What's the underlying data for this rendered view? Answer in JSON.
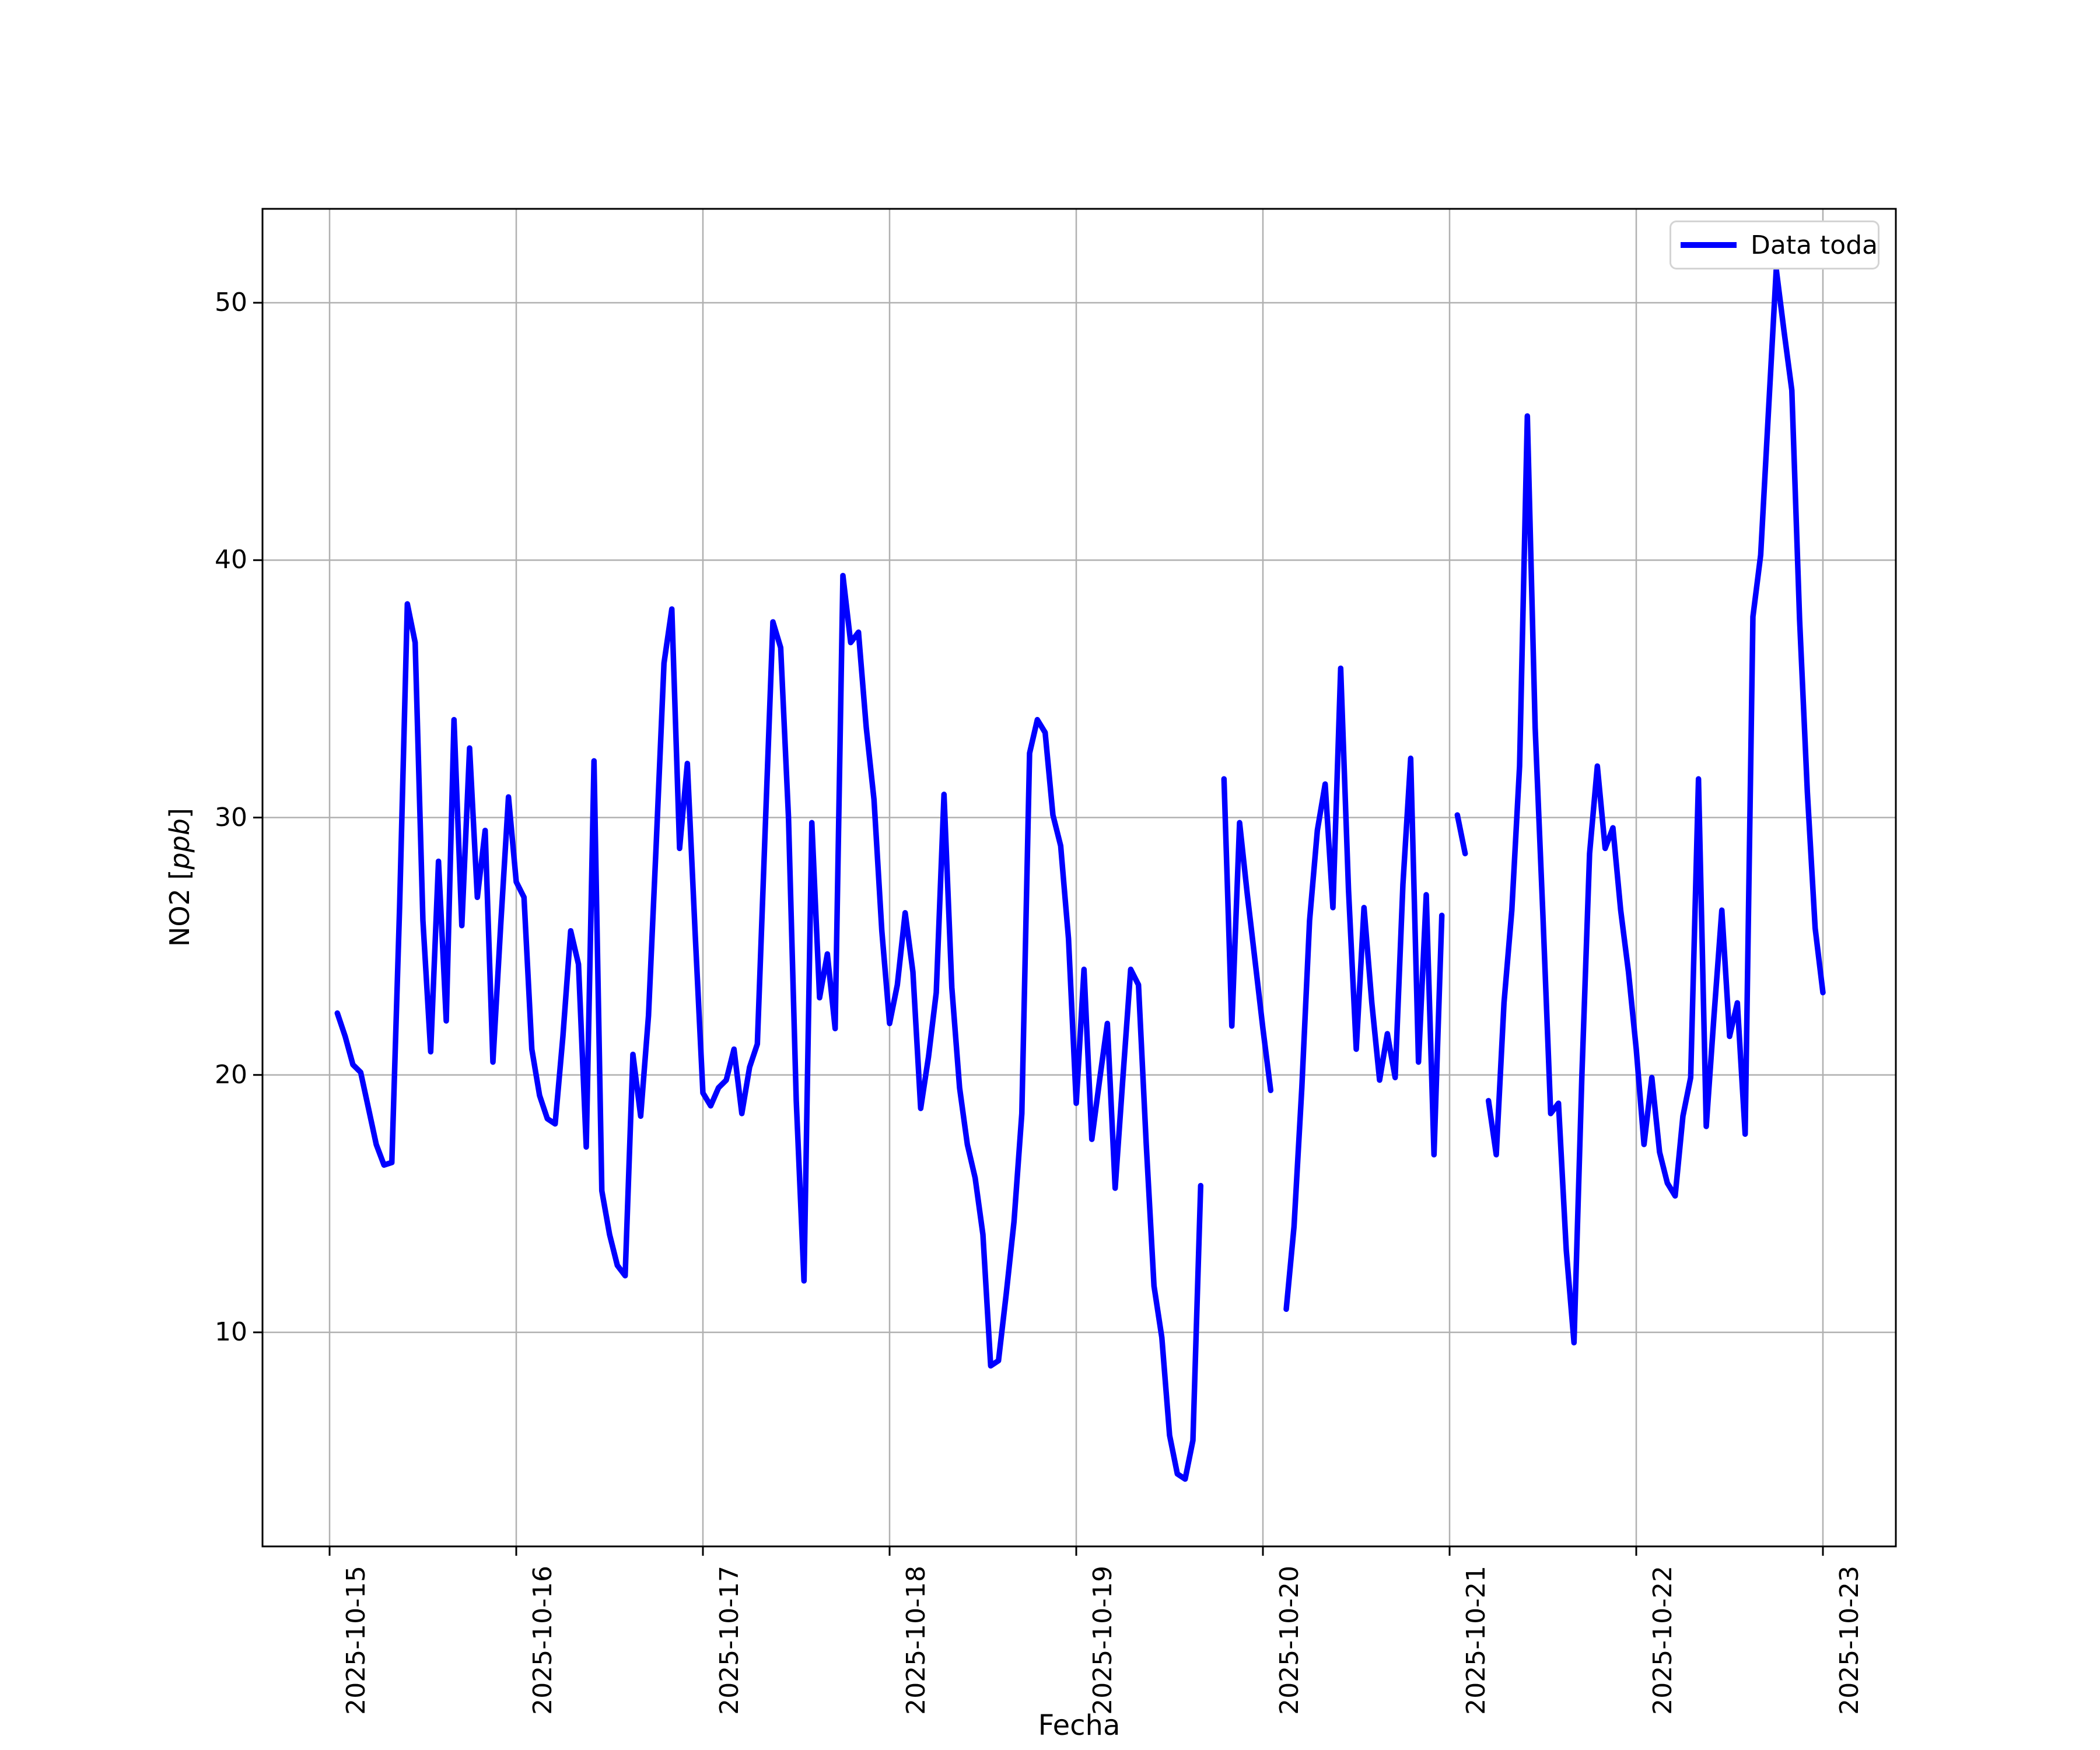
{
  "chart_data": {
    "type": "line",
    "title": "",
    "xlabel": "Fecha",
    "ylabel": "NO2 [ppb]",
    "ylabel_parts": {
      "prefix": "NO2 [",
      "italic": "ppb",
      "suffix": "]"
    },
    "grid": true,
    "grid_color": "#b0b0b0",
    "line_color": "#0000ff",
    "spine_color": "#000000",
    "legend": {
      "position": "upper right",
      "entries": [
        {
          "label": "Data toda",
          "color": "#0000ff"
        }
      ]
    },
    "x_axis": {
      "start_date": "2025-10-15",
      "tick_labels": [
        "2025-10-15",
        "2025-10-16",
        "2025-10-17",
        "2025-10-18",
        "2025-10-19",
        "2025-10-20",
        "2025-10-21",
        "2025-10-22",
        "2025-10-23"
      ],
      "tick_hours": [
        0,
        24,
        48,
        72,
        96,
        120,
        144,
        168,
        192
      ],
      "xlim_hours": [
        -8.6,
        201.4
      ],
      "tick_label_rotation_deg": 90
    },
    "y_axis": {
      "ticks": [
        10,
        20,
        30,
        40,
        50
      ],
      "ylim": [
        1.68,
        53.66
      ],
      "unit": "ppb"
    },
    "series": [
      {
        "name": "Data toda",
        "color": "#0000ff",
        "x_unit": "hours_since_2025-10-15T00:00",
        "segments": [
          [
            [
              1,
              22.4
            ],
            [
              2,
              21.5
            ],
            [
              3,
              20.4
            ],
            [
              4,
              20.1
            ],
            [
              5,
              18.7
            ],
            [
              6,
              17.3
            ],
            [
              7,
              16.5
            ],
            [
              8,
              16.6
            ],
            [
              9,
              26.5
            ],
            [
              10,
              38.3
            ],
            [
              11,
              36.8
            ],
            [
              12,
              26.0
            ],
            [
              13,
              20.9
            ],
            [
              14,
              28.3
            ],
            [
              15,
              22.1
            ],
            [
              16,
              33.8
            ],
            [
              17,
              25.8
            ],
            [
              18,
              32.7
            ],
            [
              19,
              26.9
            ],
            [
              20,
              29.5
            ],
            [
              21,
              20.5
            ],
            [
              22,
              25.8
            ],
            [
              23,
              30.8
            ],
            [
              24,
              27.5
            ],
            [
              25,
              26.9
            ],
            [
              26,
              21.0
            ],
            [
              27,
              19.2
            ],
            [
              28,
              18.3
            ],
            [
              29,
              18.1
            ],
            [
              30,
              21.5
            ],
            [
              31,
              25.6
            ],
            [
              32,
              24.3
            ],
            [
              33,
              17.2
            ],
            [
              34,
              32.2
            ],
            [
              35,
              15.5
            ],
            [
              36,
              13.8
            ],
            [
              37,
              12.6
            ],
            [
              38,
              12.2
            ],
            [
              39,
              20.8
            ],
            [
              40,
              18.4
            ],
            [
              41,
              22.3
            ],
            [
              42,
              29.0
            ],
            [
              43,
              36.0
            ],
            [
              44,
              38.1
            ],
            [
              45,
              28.8
            ],
            [
              46,
              32.1
            ],
            [
              47,
              25.5
            ],
            [
              48,
              19.3
            ],
            [
              49,
              18.8
            ],
            [
              50,
              19.5
            ],
            [
              51,
              19.8
            ],
            [
              52,
              21.0
            ],
            [
              53,
              18.5
            ],
            [
              54,
              20.3
            ],
            [
              55,
              21.2
            ],
            [
              56,
              29.5
            ],
            [
              57,
              37.6
            ],
            [
              58,
              36.6
            ],
            [
              59,
              30.0
            ],
            [
              60,
              19.0
            ],
            [
              61,
              12.0
            ],
            [
              62,
              29.8
            ],
            [
              63,
              23.0
            ],
            [
              64,
              24.7
            ],
            [
              65,
              21.8
            ],
            [
              66,
              39.4
            ],
            [
              67,
              36.8
            ],
            [
              68,
              37.2
            ],
            [
              69,
              33.5
            ],
            [
              70,
              30.7
            ],
            [
              71,
              25.6
            ],
            [
              72,
              22.0
            ],
            [
              73,
              23.5
            ],
            [
              74,
              26.3
            ],
            [
              75,
              24.0
            ],
            [
              76,
              18.7
            ],
            [
              77,
              20.7
            ],
            [
              78,
              23.2
            ],
            [
              79,
              30.9
            ],
            [
              80,
              23.4
            ],
            [
              81,
              19.5
            ],
            [
              82,
              17.3
            ],
            [
              83,
              16.0
            ],
            [
              84,
              13.8
            ],
            [
              85,
              8.7
            ],
            [
              86,
              8.9
            ],
            [
              87,
              11.5
            ],
            [
              88,
              14.3
            ],
            [
              89,
              18.5
            ],
            [
              90,
              32.5
            ],
            [
              91,
              33.8
            ],
            [
              92,
              33.3
            ],
            [
              93,
              30.1
            ],
            [
              94,
              28.9
            ],
            [
              95,
              25.3
            ],
            [
              96,
              18.9
            ],
            [
              97,
              24.1
            ],
            [
              98,
              17.5
            ],
            [
              99,
              19.8
            ],
            [
              100,
              22.0
            ],
            [
              101,
              15.6
            ],
            [
              102,
              19.9
            ],
            [
              103,
              24.1
            ],
            [
              104,
              23.5
            ],
            [
              105,
              17.3
            ],
            [
              106,
              11.8
            ],
            [
              107,
              9.8
            ],
            [
              108,
              6.0
            ],
            [
              109,
              4.5
            ],
            [
              110,
              4.3
            ],
            [
              111,
              5.8
            ],
            [
              112,
              15.7
            ]
          ],
          [
            [
              115,
              31.5
            ],
            [
              116,
              21.9
            ],
            [
              117,
              29.8
            ],
            [
              118,
              27.0
            ],
            [
              119,
              24.4
            ],
            [
              120,
              21.8
            ],
            [
              121,
              19.4
            ]
          ],
          [
            [
              123,
              10.9
            ],
            [
              124,
              14.1
            ],
            [
              125,
              19.5
            ],
            [
              126,
              26.0
            ],
            [
              127,
              29.5
            ],
            [
              128,
              31.3
            ],
            [
              129,
              26.5
            ],
            [
              130,
              35.8
            ],
            [
              131,
              27.2
            ],
            [
              132,
              21.0
            ],
            [
              133,
              26.5
            ],
            [
              134,
              22.8
            ],
            [
              135,
              19.8
            ],
            [
              136,
              21.6
            ],
            [
              137,
              19.9
            ],
            [
              138,
              27.4
            ],
            [
              139,
              32.3
            ],
            [
              140,
              20.5
            ],
            [
              141,
              27.0
            ],
            [
              142,
              16.9
            ],
            [
              143,
              26.2
            ]
          ],
          [
            [
              145,
              30.1
            ],
            [
              146,
              28.6
            ]
          ],
          [
            [
              149,
              19.0
            ],
            [
              150,
              16.9
            ],
            [
              151,
              22.8
            ],
            [
              152,
              26.4
            ],
            [
              153,
              32.0
            ],
            [
              154,
              45.6
            ],
            [
              155,
              33.5
            ],
            [
              156,
              26.2
            ],
            [
              157,
              18.5
            ],
            [
              158,
              18.9
            ],
            [
              159,
              13.2
            ],
            [
              160,
              9.6
            ],
            [
              161,
              19.9
            ],
            [
              162,
              28.6
            ],
            [
              163,
              32.0
            ],
            [
              164,
              28.8
            ],
            [
              165,
              29.6
            ],
            [
              166,
              26.4
            ],
            [
              167,
              24.0
            ],
            [
              168,
              21.0
            ],
            [
              169,
              17.3
            ],
            [
              170,
              19.9
            ],
            [
              171,
              17.0
            ],
            [
              172,
              15.8
            ],
            [
              173,
              15.3
            ],
            [
              174,
              18.4
            ],
            [
              175,
              19.9
            ],
            [
              176,
              31.5
            ],
            [
              177,
              18.0
            ],
            [
              178,
              22.3
            ],
            [
              179,
              26.4
            ],
            [
              180,
              21.5
            ],
            [
              181,
              22.8
            ],
            [
              182,
              17.7
            ],
            [
              183,
              37.8
            ],
            [
              184,
              40.2
            ],
            [
              185,
              45.8
            ],
            [
              186,
              51.3
            ],
            [
              187,
              48.9
            ],
            [
              188,
              46.6
            ],
            [
              189,
              37.7
            ],
            [
              190,
              31.0
            ],
            [
              191,
              25.7
            ],
            [
              192,
              23.2
            ]
          ]
        ]
      }
    ]
  }
}
